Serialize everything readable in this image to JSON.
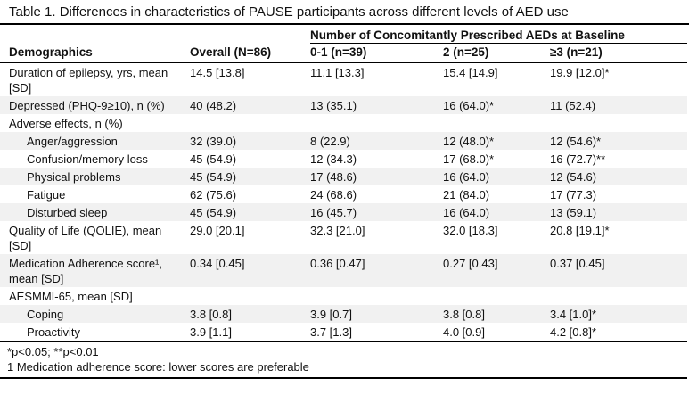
{
  "title": "Table 1. Differences in characteristics of PAUSE participants across different levels of AED use",
  "table": {
    "span_header": "Number of Concomitantly Prescribed AEDs at Baseline",
    "columns": [
      "Demographics",
      "Overall (N=86)",
      "0-1 (n=39)",
      "2 (n=25)",
      "≥3 (n=21)"
    ],
    "rows": [
      {
        "label": "Duration of epilepsy, yrs, mean [SD]",
        "indent": false,
        "section": false,
        "values": [
          "14.5 [13.8]",
          "11.1 [13.3]",
          "15.4 [14.9]",
          "19.9 [12.0]*"
        ]
      },
      {
        "label": "Depressed (PHQ-9≥10), n (%)",
        "indent": false,
        "section": false,
        "values": [
          "40 (48.2)",
          "13 (35.1)",
          "16 (64.0)*",
          "11 (52.4)"
        ]
      },
      {
        "label": "Adverse effects, n (%)",
        "indent": false,
        "section": true,
        "values": [
          "",
          "",
          "",
          ""
        ]
      },
      {
        "label": "Anger/aggression",
        "indent": true,
        "section": false,
        "values": [
          "32 (39.0)",
          "8 (22.9)",
          "12 (48.0)*",
          "12 (54.6)*"
        ]
      },
      {
        "label": "Confusion/memory loss",
        "indent": true,
        "section": false,
        "values": [
          "45 (54.9)",
          "12 (34.3)",
          "17 (68.0)*",
          "16 (72.7)**"
        ]
      },
      {
        "label": "Physical problems",
        "indent": true,
        "section": false,
        "values": [
          "45 (54.9)",
          "17 (48.6)",
          "16 (64.0)",
          "12 (54.6)"
        ]
      },
      {
        "label": "Fatigue",
        "indent": true,
        "section": false,
        "values": [
          "62 (75.6)",
          "24 (68.6)",
          "21 (84.0)",
          "17 (77.3)"
        ]
      },
      {
        "label": "Disturbed sleep",
        "indent": true,
        "section": false,
        "values": [
          "45 (54.9)",
          "16 (45.7)",
          "16 (64.0)",
          "13 (59.1)"
        ]
      },
      {
        "label": "Quality of Life (QOLIE), mean [SD]",
        "indent": false,
        "section": false,
        "values": [
          "29.0 [20.1]",
          "32.3 [21.0]",
          "32.0 [18.3]",
          "20.8 [19.1]*"
        ]
      },
      {
        "label": "Medication Adherence score¹, mean [SD]",
        "indent": false,
        "section": false,
        "values": [
          "0.34 [0.45]",
          "0.36 [0.47]",
          "0.27 [0.43]",
          "0.37 [0.45]"
        ]
      },
      {
        "label": "AESMMI-65, mean [SD]",
        "indent": false,
        "section": true,
        "values": [
          "",
          "",
          "",
          ""
        ]
      },
      {
        "label": "Coping",
        "indent": true,
        "section": false,
        "values": [
          "3.8 [0.8]",
          "3.9 [0.7]",
          "3.8 [0.8]",
          "3.4 [1.0]*"
        ]
      },
      {
        "label": "Proactivity",
        "indent": true,
        "section": false,
        "values": [
          "3.9 [1.1]",
          "3.7 [1.3]",
          "4.0 [0.9]",
          "4.2 [0.8]*"
        ]
      }
    ],
    "footnotes": [
      "*p<0.05; **p<0.01",
      "1 Medication adherence score: lower scores are preferable"
    ]
  },
  "colors": {
    "row_shading": "#f1f1f1",
    "rule": "#000000",
    "text": "#111111"
  }
}
